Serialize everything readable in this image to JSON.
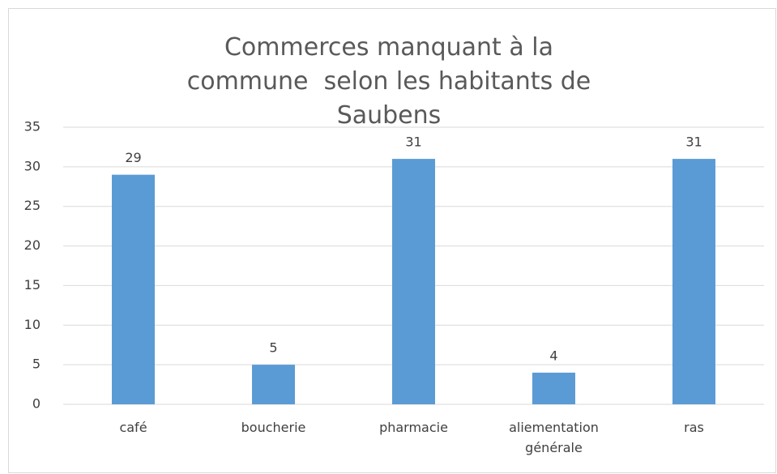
{
  "chart_data": {
    "type": "bar",
    "title": "Commerces manquant à la commune  selon les habitants de Saubens",
    "categories": [
      "café",
      "boucherie",
      "pharmacie",
      "aliementation générale",
      "ras"
    ],
    "values": [
      29,
      5,
      31,
      4,
      31
    ],
    "color": "#5b9bd5",
    "ylim": [
      0,
      35
    ],
    "yticks": [
      0,
      5,
      10,
      15,
      20,
      25,
      30,
      35
    ],
    "grid": true
  }
}
